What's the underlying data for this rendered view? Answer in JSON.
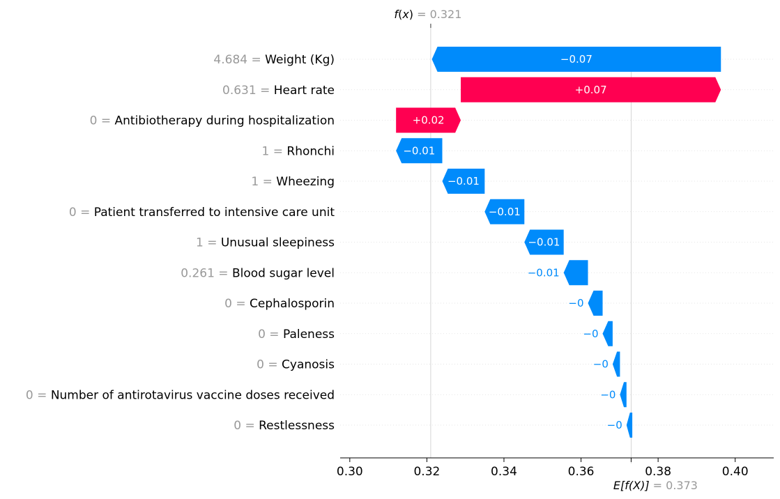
{
  "chart_data": {
    "type": "waterfall",
    "fx": {
      "label_f": "f",
      "label_x": "x",
      "value": "0.321",
      "num": 0.321
    },
    "efx": {
      "label": "E[f(X)]",
      "value": "0.373",
      "num": 0.373
    },
    "features": [
      {
        "value": "4.684",
        "name": "Weight (Kg)",
        "start": 0.3963,
        "end": 0.3213,
        "label": "−0.07",
        "sign": "neg"
      },
      {
        "value": "0.631",
        "name": "Heart rate",
        "start": 0.3288,
        "end": 0.3963,
        "label": "+0.07",
        "sign": "pos"
      },
      {
        "value": "0",
        "name": "Antibiotherapy during hospitalization",
        "start": 0.312,
        "end": 0.3288,
        "label": "+0.02",
        "sign": "pos"
      },
      {
        "value": "1",
        "name": "Rhonchi",
        "start": 0.324,
        "end": 0.312,
        "label": "−0.01",
        "sign": "neg"
      },
      {
        "value": "1",
        "name": "Wheezing",
        "start": 0.335,
        "end": 0.324,
        "label": "−0.01",
        "sign": "neg"
      },
      {
        "value": "0",
        "name": "Patient transferred to intensive care unit",
        "start": 0.3453,
        "end": 0.335,
        "label": "−0.01",
        "sign": "neg"
      },
      {
        "value": "1",
        "name": "Unusual sleepiness",
        "start": 0.3555,
        "end": 0.3453,
        "label": "−0.01",
        "sign": "neg"
      },
      {
        "value": "0.261",
        "name": "Blood sugar level",
        "start": 0.3618,
        "end": 0.3555,
        "label": "−0.01",
        "sign": "neg"
      },
      {
        "value": "0",
        "name": "Cephalosporin",
        "start": 0.3656,
        "end": 0.3618,
        "label": "−0",
        "sign": "neg"
      },
      {
        "value": "0",
        "name": "Paleness",
        "start": 0.3682,
        "end": 0.3656,
        "label": "−0",
        "sign": "neg"
      },
      {
        "value": "0",
        "name": "Cyanosis",
        "start": 0.3701,
        "end": 0.3682,
        "label": "−0",
        "sign": "neg"
      },
      {
        "value": "0",
        "name": "Number of antirotavirus vaccine doses received",
        "start": 0.3718,
        "end": 0.3701,
        "label": "−0",
        "sign": "neg"
      },
      {
        "value": "0",
        "name": "Restlessness",
        "start": 0.3733,
        "end": 0.3718,
        "label": "−0",
        "sign": "neg"
      }
    ],
    "x_ticks": [
      "0.30",
      "0.32",
      "0.34",
      "0.36",
      "0.38",
      "0.40"
    ],
    "x_tick_values": [
      0.3,
      0.32,
      0.34,
      0.36,
      0.38,
      0.4
    ],
    "xlim": [
      0.2975,
      0.41
    ],
    "colors": {
      "positive": "#ff0051",
      "negative": "#008bfb",
      "value_text": "#999999",
      "gridline": "#cccccc"
    }
  }
}
